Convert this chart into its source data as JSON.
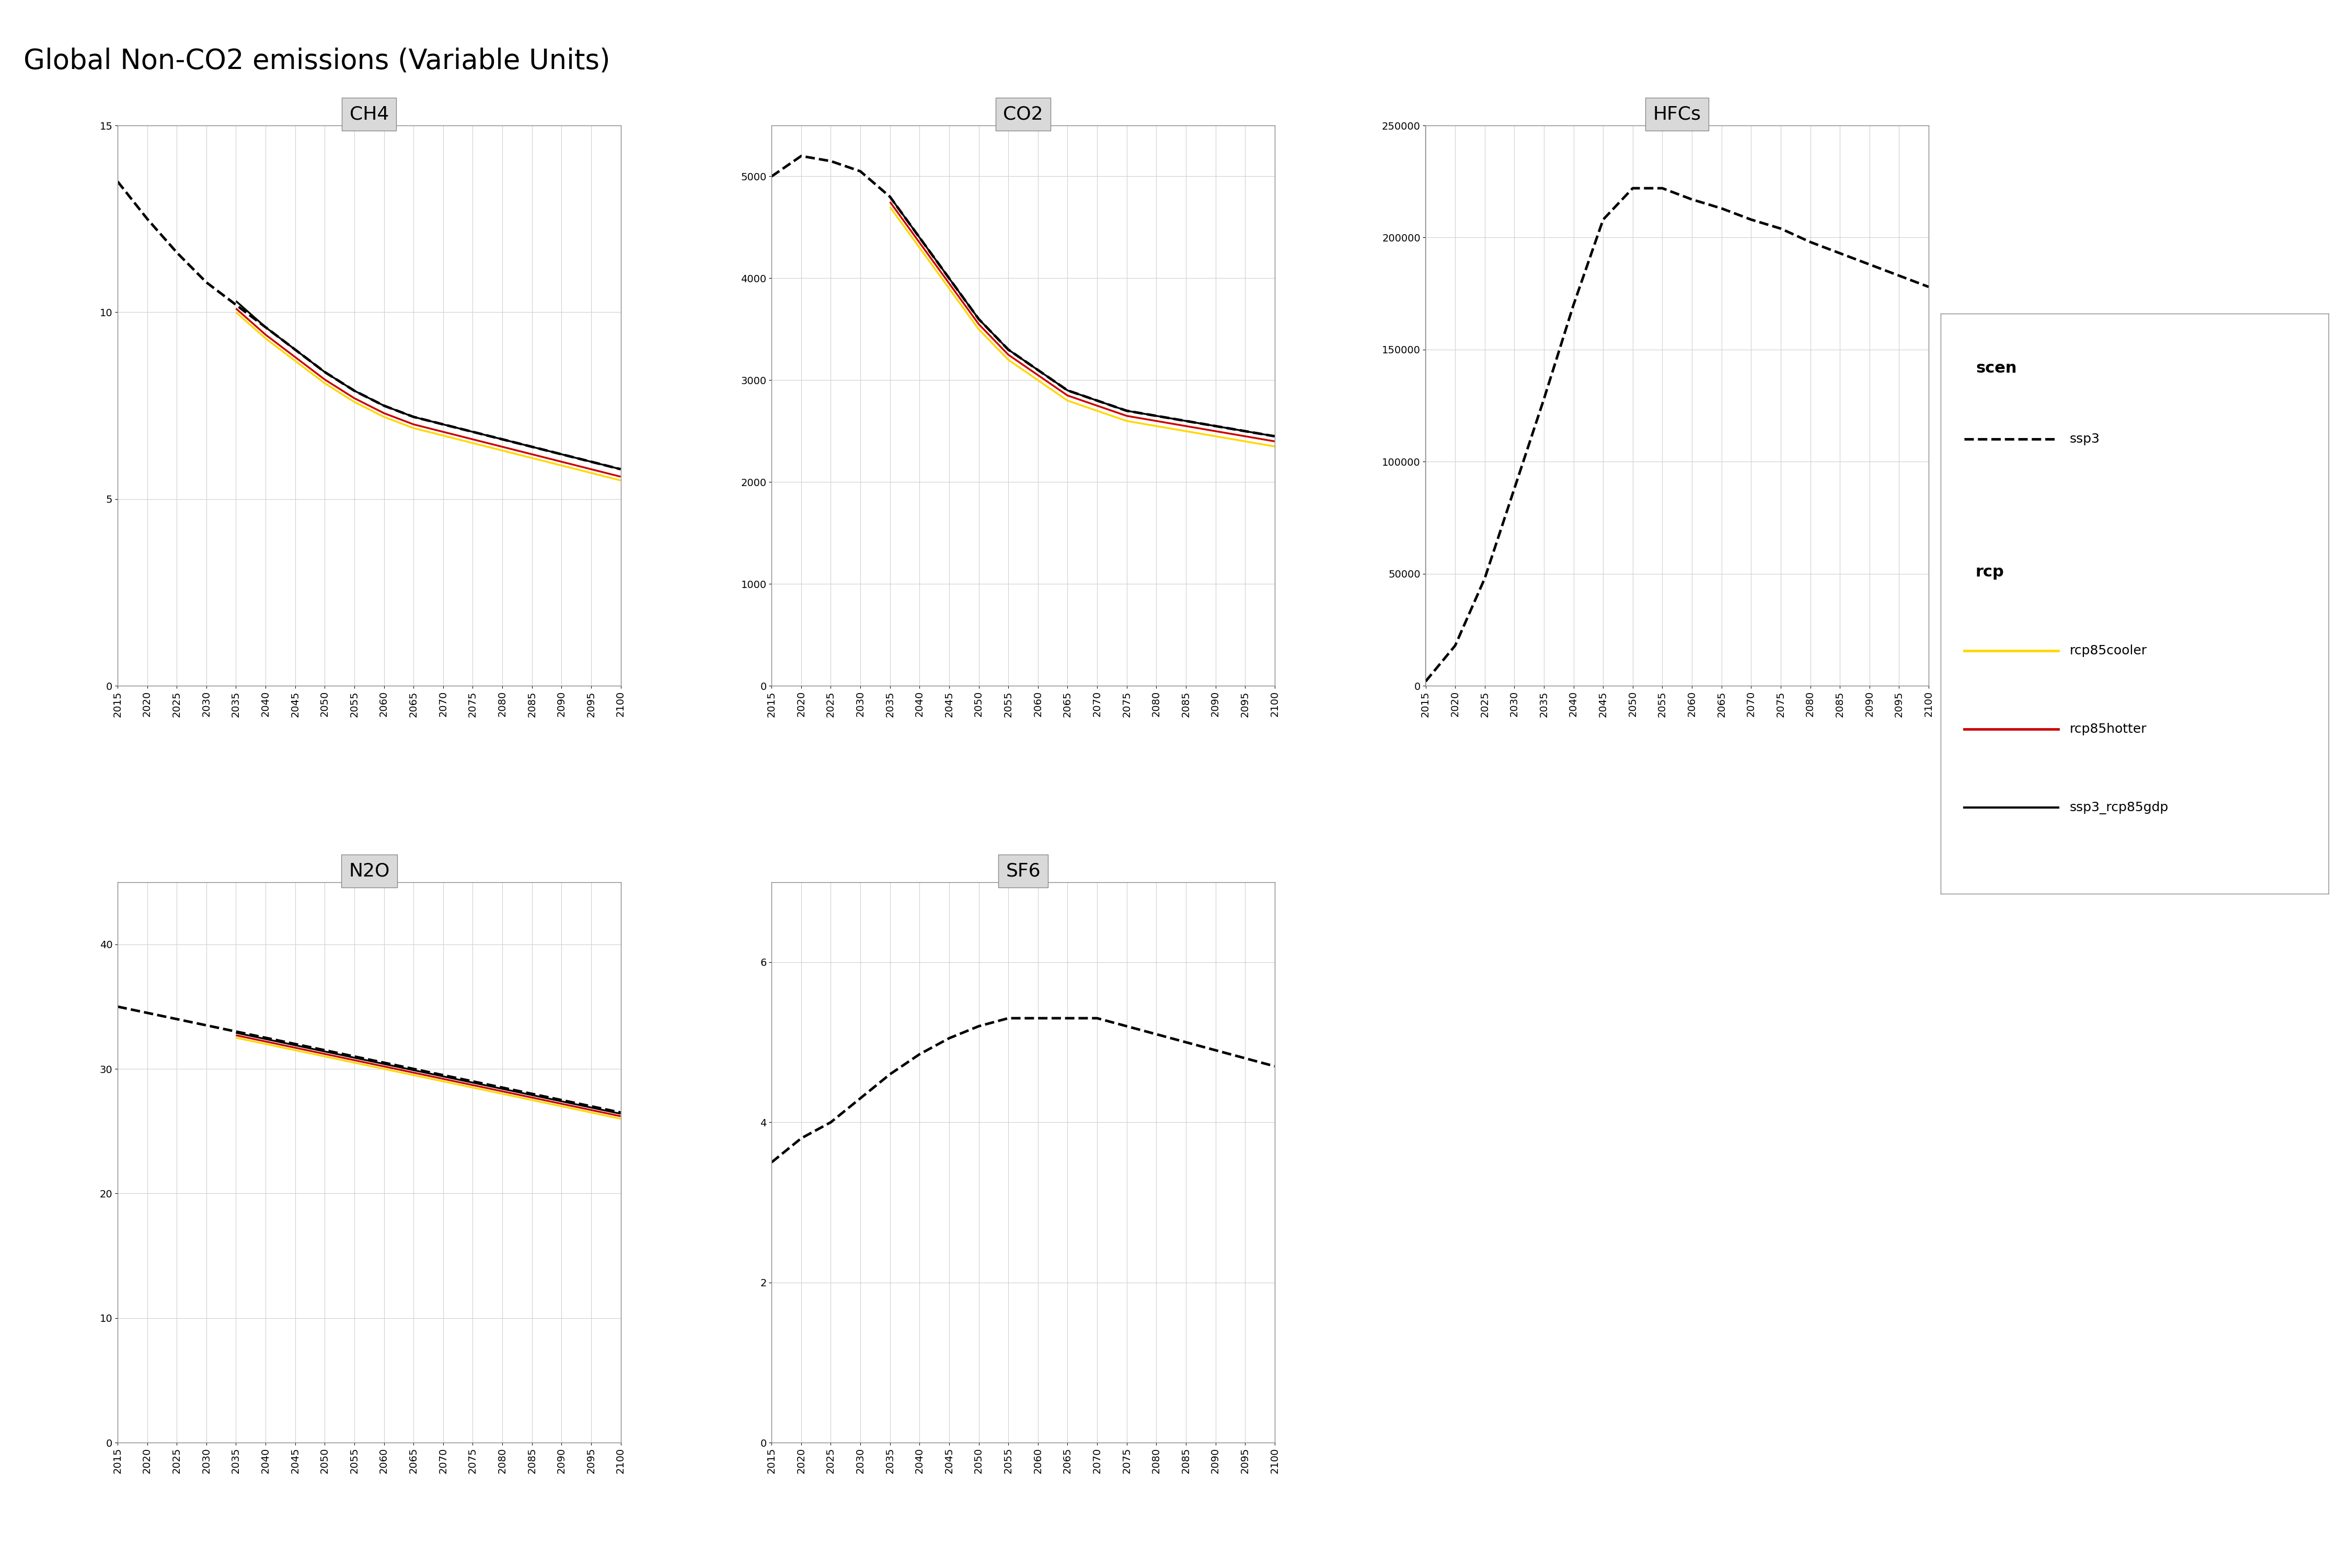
{
  "title": "Global Non-CO2 emissions (Variable Units)",
  "years": [
    2015,
    2020,
    2025,
    2030,
    2035,
    2040,
    2045,
    2050,
    2055,
    2060,
    2065,
    2070,
    2075,
    2080,
    2085,
    2090,
    2095,
    2100
  ],
  "panels": {
    "CH4": {
      "ylim": [
        0,
        15
      ],
      "yticks": [
        0,
        5,
        10,
        15
      ],
      "ssp3": [
        13.5,
        12.8,
        12.0,
        11.2,
        10.5,
        10.0,
        9.3,
        8.7,
        8.2,
        7.8,
        7.5,
        7.3,
        7.0,
        6.8,
        6.5,
        6.3,
        6.0,
        5.8
      ],
      "rcp85cooler": [
        null,
        null,
        null,
        null,
        null,
        null,
        null,
        null,
        null,
        null,
        null,
        null,
        null,
        null,
        null,
        null,
        null,
        null
      ],
      "rcp85hotter": [
        null,
        null,
        null,
        null,
        null,
        null,
        null,
        null,
        null,
        null,
        null,
        null,
        null,
        null,
        null,
        null,
        null,
        null
      ],
      "ssp3_rcp85gdp": [
        null,
        null,
        null,
        null,
        10.5,
        9.7,
        9.0,
        8.5,
        8.0,
        7.6,
        7.3,
        7.0,
        6.8,
        6.6,
        6.3,
        6.1,
        5.9,
        5.7
      ]
    },
    "CO2": {
      "ylim": [
        0,
        5500
      ],
      "yticks": [
        0,
        1000,
        2000,
        3000,
        4000,
        5000
      ],
      "ssp3": [
        5000,
        5200,
        5200,
        5100,
        4800,
        4400,
        4000,
        3600,
        3300,
        3100,
        2900,
        2800,
        2700,
        2650,
        2600,
        2550,
        2500,
        2450
      ],
      "rcp85cooler": [
        null,
        null,
        null,
        null,
        null,
        null,
        null,
        null,
        null,
        null,
        null,
        null,
        null,
        null,
        null,
        null,
        null,
        null
      ],
      "rcp85hotter": [
        null,
        null,
        null,
        null,
        null,
        null,
        null,
        null,
        null,
        null,
        null,
        null,
        null,
        null,
        null,
        null,
        null,
        null
      ],
      "ssp3_rcp85gdp": [
        null,
        null,
        null,
        null,
        4800,
        4400,
        4000,
        3600,
        3300,
        3100,
        2900,
        2800,
        2700,
        2650,
        2600,
        2550,
        2500,
        2450
      ]
    },
    "HFCs": {
      "ylim": [
        0,
        250000
      ],
      "yticks": [
        0,
        50000,
        100000,
        150000,
        200000,
        250000
      ],
      "ssp3": [
        2000,
        20000,
        50000,
        90000,
        130000,
        175000,
        210000,
        225000,
        225000,
        220000,
        215000,
        210000,
        205000,
        200000,
        195000,
        190000,
        185000,
        180000
      ],
      "rcp85cooler": [
        null,
        null,
        null,
        null,
        null,
        null,
        null,
        null,
        null,
        null,
        null,
        null,
        null,
        null,
        null,
        null,
        null,
        null
      ],
      "rcp85hotter": [
        null,
        null,
        null,
        null,
        null,
        null,
        null,
        null,
        null,
        null,
        null,
        null,
        null,
        null,
        null,
        null,
        null,
        null
      ],
      "ssp3_rcp85gdp": [
        null,
        null,
        null,
        null,
        null,
        null,
        null,
        null,
        null,
        null,
        null,
        null,
        null,
        null,
        null,
        null,
        null,
        null
      ]
    },
    "N2O": {
      "ylim": [
        0,
        45
      ],
      "yticks": [
        0,
        10,
        20,
        30,
        40
      ],
      "ssp3": [
        35.0,
        34.5,
        34.0,
        33.5,
        33.0,
        32.5,
        32.0,
        31.5,
        31.0,
        30.5,
        30.0,
        29.5,
        29.0,
        28.5,
        28.0,
        27.5,
        27.0,
        26.5
      ],
      "rcp85cooler": [
        null,
        null,
        null,
        null,
        null,
        null,
        null,
        null,
        null,
        null,
        null,
        null,
        null,
        null,
        null,
        null,
        null,
        null
      ],
      "rcp85hotter": [
        null,
        null,
        null,
        null,
        null,
        null,
        null,
        null,
        null,
        null,
        null,
        null,
        null,
        null,
        null,
        null,
        null,
        null
      ],
      "ssp3_rcp85gdp": [
        null,
        null,
        null,
        null,
        33.0,
        32.5,
        32.0,
        31.5,
        31.0,
        30.5,
        30.0,
        29.5,
        29.0,
        28.5,
        28.0,
        27.5,
        27.0,
        26.5
      ]
    },
    "SF6": {
      "ylim": [
        0,
        7
      ],
      "yticks": [
        0,
        2,
        4,
        6
      ],
      "ssp3": [
        3.5,
        3.8,
        4.0,
        4.2,
        4.5,
        4.8,
        5.0,
        5.2,
        5.3,
        5.3,
        5.3,
        5.3,
        5.2,
        5.1,
        5.0,
        4.9,
        4.8,
        4.7
      ],
      "rcp85cooler": [
        null,
        null,
        null,
        null,
        null,
        null,
        null,
        null,
        null,
        null,
        null,
        null,
        null,
        null,
        null,
        null,
        null,
        null
      ],
      "rcp85hotter": [
        null,
        null,
        null,
        null,
        null,
        null,
        null,
        null,
        null,
        null,
        null,
        null,
        null,
        null,
        null,
        null,
        null,
        null
      ],
      "ssp3_rcp85gdp": [
        null,
        null,
        null,
        null,
        null,
        null,
        null,
        null,
        null,
        null,
        null,
        null,
        null,
        null,
        null,
        null,
        null,
        null
      ]
    }
  },
  "colors": {
    "ssp3": "#000000",
    "rcp85cooler": "#FFD700",
    "rcp85hotter": "#CC0000",
    "ssp3_rcp85gdp": "#000000"
  },
  "line_styles": {
    "ssp3": "--",
    "rcp85cooler": "-",
    "rcp85hotter": "-",
    "ssp3_rcp85gdp": "-"
  },
  "line_widths": {
    "ssp3": 3.0,
    "rcp85cooler": 2.5,
    "rcp85hotter": 2.5,
    "ssp3_rcp85gdp": 2.5
  }
}
